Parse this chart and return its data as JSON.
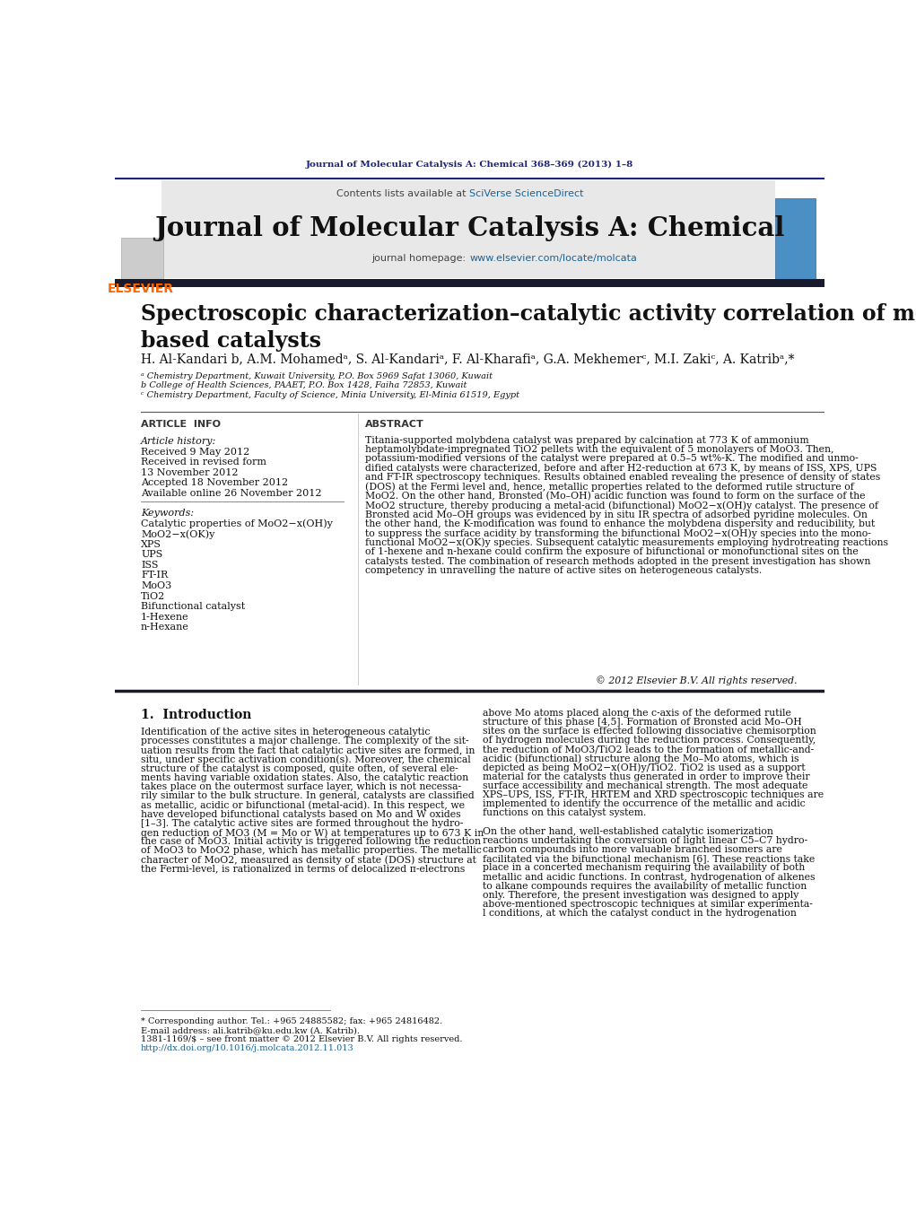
{
  "fig_width": 10.21,
  "fig_height": 13.51,
  "bg_color": "#ffffff",
  "journal_ref_text": "Journal of Molecular Catalysis A: Chemical 368–369 (2013) 1–8",
  "journal_ref_color": "#1a237e",
  "header_bg": "#e8e8e8",
  "header_text": "Journal of Molecular Catalysis A: Chemical",
  "contents_normal": "Contents lists available at ",
  "contents_link": "SciVerse ScienceDirect",
  "homepage_normal": "journal homepage: ",
  "homepage_link": "www.elsevier.com/locate/molcata",
  "link_color": "#1a6496",
  "elsevier_color": "#ff6600",
  "divider_color": "#1a237e",
  "dark_bar_color": "#1a1a2e",
  "article_title": "Spectroscopic characterization–catalytic activity correlation of molybdena\nbased catalysts",
  "authors": "H. Al-Kandari b, A.M. Mohamedᵃ, S. Al-Kandariᵃ, F. Al-Kharafiᵃ, G.A. Mekhemerᶜ, M.I. Zakiᶜ, A. Katribᵃ,*",
  "affil_a": "ᵃ Chemistry Department, Kuwait University, P.O. Box 5969 Safat 13060, Kuwait",
  "affil_b": "b College of Health Sciences, PAAET, P.O. Box 1428, Faiha 72853, Kuwait",
  "affil_c": "ᶜ Chemistry Department, Faculty of Science, Minia University, El-Minia 61519, Egypt",
  "article_info_title": "ARTICLE  INFO",
  "abstract_title": "ABSTRACT",
  "article_history_label": "Article history:",
  "received_1": "Received 9 May 2012",
  "received_2": "Received in revised form",
  "received_2b": "13 November 2012",
  "accepted": "Accepted 18 November 2012",
  "available": "Available online 26 November 2012",
  "keywords_label": "Keywords:",
  "keywords": [
    "Catalytic properties of MoO2−x(OH)y",
    "MoO2−x(OK)y",
    "XPS",
    "UPS",
    "ISS",
    "FT-IR",
    "MoO3",
    "TiO2",
    "Bifunctional catalyst",
    "1-Hexene",
    "n-Hexane"
  ],
  "abstract_text": "Titania-supported molybdena catalyst was prepared by calcination at 773 K of ammonium\nheptamolybdate-impregnated TiO2 pellets with the equivalent of 5 monolayers of MoO3. Then,\npotassium-modified versions of the catalyst were prepared at 0.5–5 wt%-K. The modified and unmo-\ndified catalysts were characterized, before and after H2-reduction at 673 K, by means of ISS, XPS, UPS\nand FT-IR spectroscopy techniques. Results obtained enabled revealing the presence of density of states\n(DOS) at the Fermi level and, hence, metallic properties related to the deformed rutile structure of\nMoO2. On the other hand, Bronsted (Mo–OH) acidic function was found to form on the surface of the\nMoO2 structure, thereby producing a metal-acid (bifunctional) MoO2−x(OH)y catalyst. The presence of\nBronsted acid Mo–OH groups was evidenced by in situ IR spectra of adsorbed pyridine molecules. On\nthe other hand, the K-modification was found to enhance the molybdena dispersity and reducibility, but\nto suppress the surface acidity by transforming the bifunctional MoO2−x(OH)y species into the mono-\nfunctional MoO2−x(OK)y species. Subsequent catalytic measurements employing hydrotreating reactions\nof 1-hexene and n-hexane could confirm the exposure of bifunctional or monofunctional sites on the\ncatalysts tested. The combination of research methods adopted in the present investigation has shown\ncompetency in unravelling the nature of active sites on heterogeneous catalysts.",
  "copyright_text": "© 2012 Elsevier B.V. All rights reserved.",
  "intro_title": "1.  Introduction",
  "intro_col1_lines": [
    "Identification of the active sites in heterogeneous catalytic",
    "processes constitutes a major challenge. The complexity of the sit-",
    "uation results from the fact that catalytic active sites are formed, in",
    "situ, under specific activation condition(s). Moreover, the chemical",
    "structure of the catalyst is composed, quite often, of several ele-",
    "ments having variable oxidation states. Also, the catalytic reaction",
    "takes place on the outermost surface layer, which is not necessa-",
    "rily similar to the bulk structure. In general, catalysts are classified",
    "as metallic, acidic or bifunctional (metal-acid). In this respect, we",
    "have developed bifunctional catalysts based on Mo and W oxides",
    "[1–3]. The catalytic active sites are formed throughout the hydro-",
    "gen reduction of MO3 (M = Mo or W) at temperatures up to 673 K in",
    "the case of MoO3. Initial activity is triggered following the reduction",
    "of MoO3 to MoO2 phase, which has metallic properties. The metallic",
    "character of MoO2, measured as density of state (DOS) structure at",
    "the Fermi-level, is rationalized in terms of delocalized π-electrons"
  ],
  "intro_col2_lines": [
    "above Mo atoms placed along the c-axis of the deformed rutile",
    "structure of this phase [4,5]. Formation of Bronsted acid Mo–OH",
    "sites on the surface is effected following dissociative chemisorption",
    "of hydrogen molecules during the reduction process. Consequently,",
    "the reduction of MoO3/TiO2 leads to the formation of metallic-and-",
    "acidic (bifunctional) structure along the Mo–Mo atoms, which is",
    "depicted as being MoO2−x(OH)y/TiO2. TiO2 is used as a support",
    "material for the catalysts thus generated in order to improve their",
    "surface accessibility and mechanical strength. The most adequate",
    "XPS–UPS, ISS, FT-IR, HRTEM and XRD spectroscopic techniques are",
    "implemented to identify the occurrence of the metallic and acidic",
    "functions on this catalyst system.",
    "",
    "On the other hand, well-established catalytic isomerization",
    "reactions undertaking the conversion of light linear C5–C7 hydro-",
    "carbon compounds into more valuable branched isomers are",
    "facilitated via the bifunctional mechanism [6]. These reactions take",
    "place in a concerted mechanism requiring the availability of both",
    "metallic and acidic functions. In contrast, hydrogenation of alkenes",
    "to alkane compounds requires the availability of metallic function",
    "only. Therefore, the present investigation was designed to apply",
    "above-mentioned spectroscopic techniques at similar experimenta-",
    "l conditions, at which the catalyst conduct in the hydrogenation"
  ],
  "footnote_star": "* Corresponding author. Tel.: +965 24885582; fax: +965 24816482.",
  "footnote_email": "E-mail address: ali.katrib@ku.edu.kw (A. Katrib).",
  "footnote_issn": "1381-1169/$ – see front matter © 2012 Elsevier B.V. All rights reserved.",
  "footnote_doi": "http://dx.doi.org/10.1016/j.molcata.2012.11.013"
}
